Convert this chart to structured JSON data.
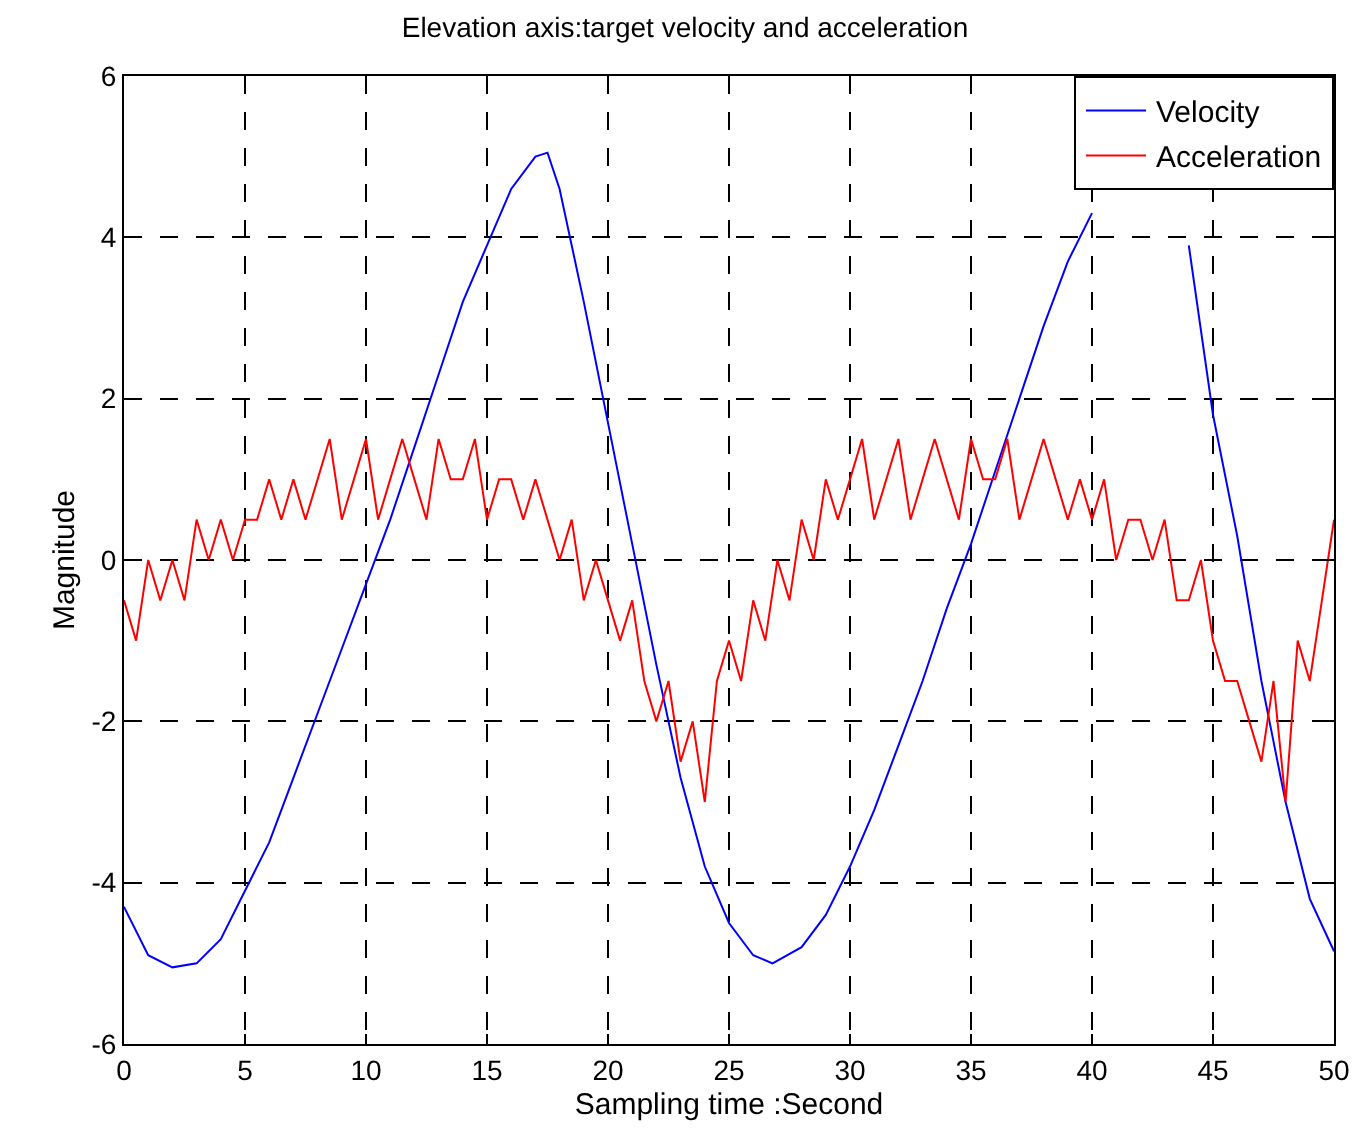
{
  "chart_data": {
    "type": "line",
    "title": "Elevation axis:target velocity and acceleration",
    "xlabel": "Sampling time :Second",
    "ylabel": "Magnitude",
    "xlim": [
      0,
      50
    ],
    "xticks": [
      0,
      5,
      10,
      15,
      20,
      25,
      30,
      35,
      40,
      45,
      50
    ],
    "ylim": [
      -6,
      6
    ],
    "yticks": [
      -6,
      -4,
      -2,
      0,
      2,
      4,
      6
    ],
    "grid": true,
    "legend": "top right",
    "marker": "none",
    "line_style": "solid",
    "series": [
      {
        "name": "Velocity",
        "color": "#0000ff",
        "x": [
          0,
          1,
          2,
          3,
          4,
          5,
          6,
          7,
          8,
          9,
          10,
          11,
          12,
          13,
          14,
          15,
          16,
          17,
          17.5,
          18,
          19,
          20,
          21,
          22,
          23,
          24,
          25,
          26,
          26.8,
          28,
          29,
          30,
          31,
          32,
          33,
          34,
          35,
          36,
          37,
          38,
          39,
          40,
          41,
          42,
          43,
          44,
          45,
          46,
          47,
          48,
          49,
          50
        ],
        "values": [
          -4.3,
          -4.9,
          -5.05,
          -5.0,
          -4.7,
          -4.1,
          -3.5,
          -2.7,
          -1.9,
          -1.1,
          -0.3,
          0.5,
          1.4,
          2.3,
          3.2,
          3.9,
          4.6,
          5.0,
          5.05,
          4.6,
          3.2,
          1.7,
          0.2,
          -1.3,
          -2.7,
          -3.8,
          -4.5,
          -4.9,
          -5.0,
          -4.8,
          -4.4,
          -3.8,
          -3.1,
          -2.3,
          -1.5,
          -0.6,
          0.2,
          1.1,
          2.0,
          2.9,
          3.7,
          4.3,
          null,
          null,
          null,
          3.9,
          1.8,
          0.3,
          -1.5,
          -3.0,
          -4.2,
          -4.85
        ]
      },
      {
        "name": "Acceleration",
        "color": "#ff0000",
        "x": [
          0,
          0.5,
          1,
          1.5,
          2,
          2.5,
          3,
          3.5,
          4,
          4.5,
          5,
          5.5,
          6,
          6.5,
          7,
          7.5,
          8,
          8.5,
          9,
          9.5,
          10,
          10.5,
          11,
          11.5,
          12,
          12.5,
          13,
          13.5,
          14,
          14.5,
          15,
          15.5,
          16,
          16.5,
          17,
          17.5,
          18,
          18.5,
          19,
          19.5,
          20,
          20.5,
          21,
          21.5,
          22,
          22.5,
          23,
          23.5,
          24,
          24.5,
          25,
          25.5,
          26,
          26.5,
          27,
          27.5,
          28,
          28.5,
          29,
          29.5,
          30,
          30.5,
          31,
          31.5,
          32,
          32.5,
          33,
          33.5,
          34,
          34.5,
          35,
          35.5,
          36,
          36.5,
          37,
          37.5,
          38,
          38.5,
          39,
          39.5,
          40,
          40.5,
          41,
          41.5,
          42,
          42.5,
          43,
          43.5,
          44,
          44.5,
          45,
          45.5,
          46,
          46.5,
          47,
          47.5,
          48,
          48.5,
          49,
          49.5,
          50
        ],
        "values": [
          -0.5,
          -1,
          0,
          -0.5,
          0,
          -0.5,
          0.5,
          0,
          0.5,
          0,
          0.5,
          0.5,
          1,
          0.5,
          1,
          0.5,
          1,
          1.5,
          0.5,
          1,
          1.5,
          0.5,
          1,
          1.5,
          1,
          0.5,
          1.5,
          1,
          1,
          1.5,
          0.5,
          1,
          1,
          0.5,
          1,
          0.5,
          0,
          0.5,
          -0.5,
          0,
          -0.5,
          -1,
          -0.5,
          -1.5,
          -2,
          -1.5,
          -2.5,
          -2,
          -3,
          -1.5,
          -1,
          -1.5,
          -0.5,
          -1,
          0,
          -0.5,
          0.5,
          0,
          1,
          0.5,
          1,
          1.5,
          0.5,
          1,
          1.5,
          0.5,
          1,
          1.5,
          1,
          0.5,
          1.5,
          1,
          1,
          1.5,
          0.5,
          1,
          1.5,
          1,
          0.5,
          1,
          0.5,
          1,
          0,
          0.5,
          0.5,
          0,
          0.5,
          -0.5,
          -0.5,
          0,
          -1,
          -1.5,
          -1.5,
          -2,
          -2.5,
          -1.5,
          -3,
          -1,
          -1.5,
          -0.5,
          0.5
        ]
      }
    ]
  }
}
